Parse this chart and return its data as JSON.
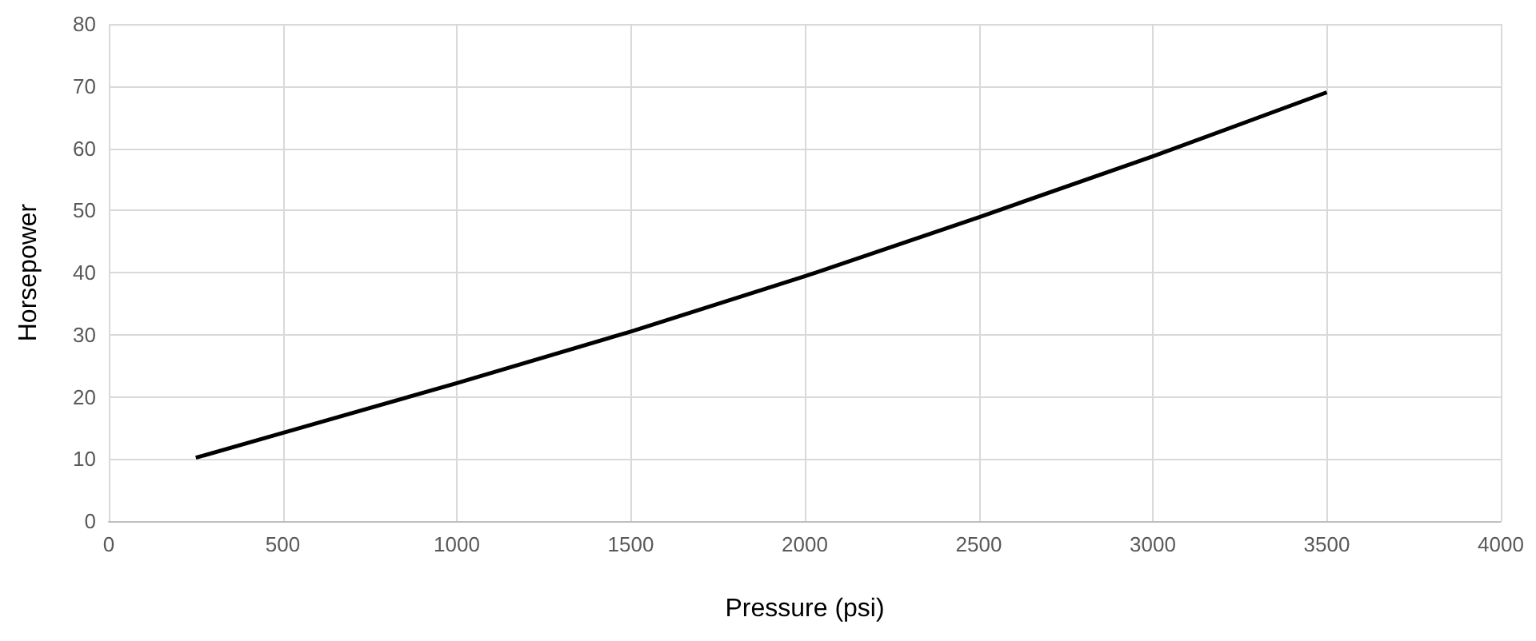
{
  "chart_data": {
    "type": "line",
    "xlabel": "Pressure (psi)",
    "ylabel": "Horsepower",
    "x": [
      250,
      500,
      1000,
      1500,
      2000,
      2500,
      3000,
      3500
    ],
    "series": [
      {
        "color": "#000000",
        "values": [
          10.2,
          14.2,
          22.2,
          30.5,
          39.4,
          48.9,
          58.7,
          69
        ]
      }
    ],
    "xlim": [
      0,
      4000
    ],
    "xticks": [
      0,
      500,
      1000,
      1500,
      2000,
      2500,
      3000,
      3500,
      4000
    ],
    "ylim": [
      0,
      80
    ],
    "yticks": [
      0,
      10,
      20,
      30,
      40,
      50,
      60,
      70,
      80
    ],
    "grid": true,
    "marker": "none",
    "line_style": "solid"
  }
}
